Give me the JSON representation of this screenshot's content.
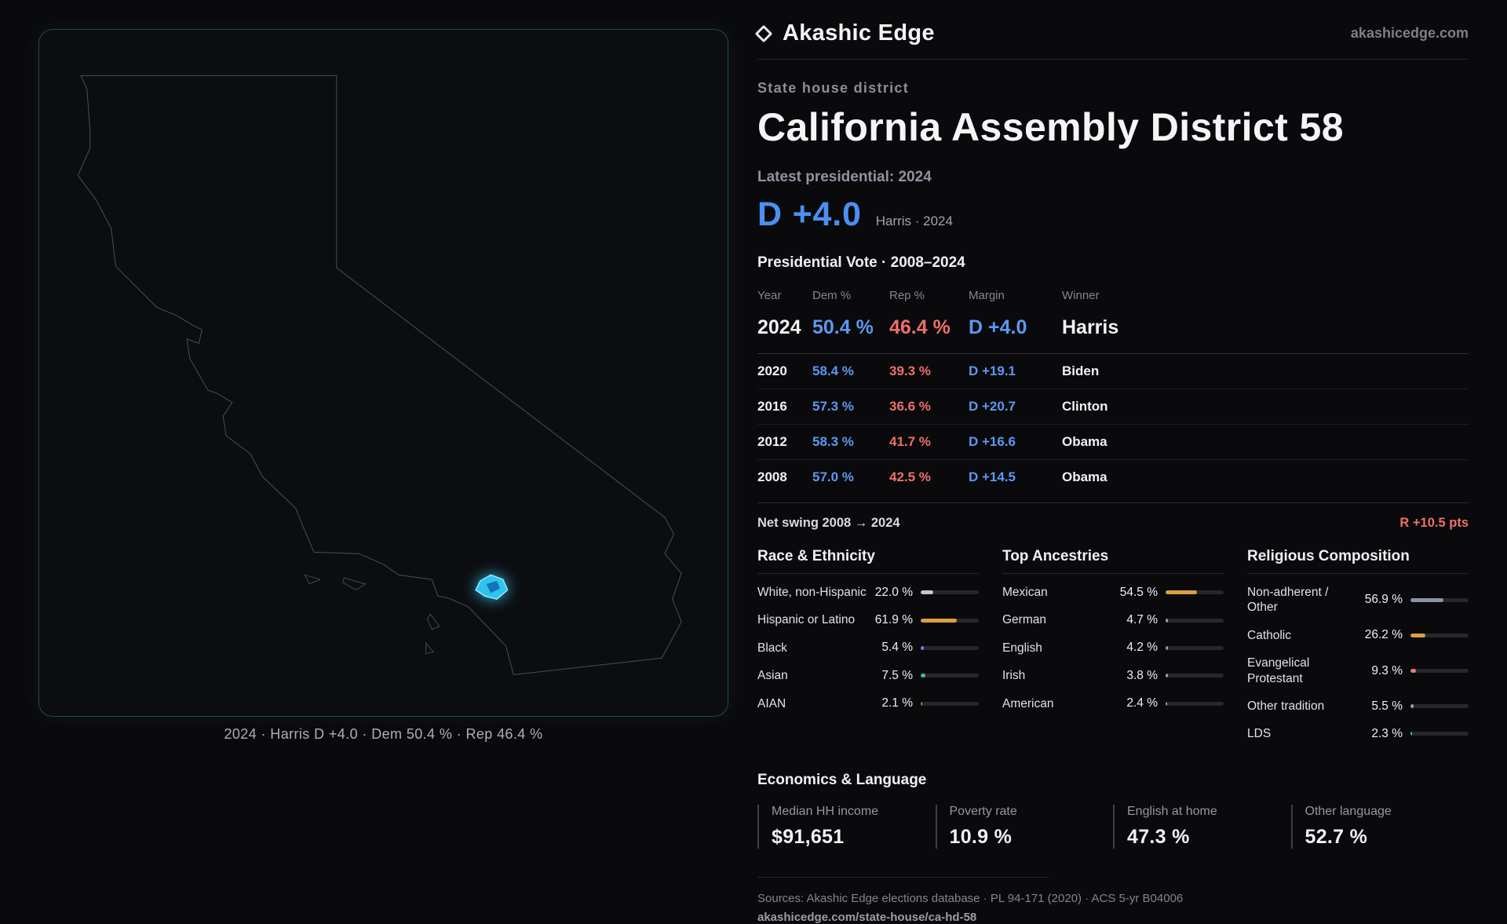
{
  "colors": {
    "dem_blue": "#5e97f4",
    "dem_blue_bright": "#4b90f2",
    "rep_red": "#ee6f6b",
    "accent_cyan": "#2ec4ee",
    "gold": "#d9a23f"
  },
  "header": {
    "brand": "Akashic Edge",
    "site": "akashicedge.com"
  },
  "map": {
    "caption": "2024 · Harris D +4.0 · Dem 50.4 % · Rep 46.4 %"
  },
  "district": {
    "kicker": "State house district",
    "title": "California Assembly District 58",
    "latest_label": "Latest presidential: 2024",
    "headline_margin": "D +4.0",
    "headline_context": "Harris · 2024"
  },
  "vote_table": {
    "title": "Presidential Vote · 2008–2024",
    "columns": {
      "year": "Year",
      "dem": "Dem %",
      "rep": "Rep %",
      "margin": "Margin",
      "winner": "Winner"
    },
    "rows": [
      {
        "year": "2024",
        "dem": "50.4 %",
        "rep": "46.4 %",
        "margin": "D +4.0",
        "winner": "Harris"
      },
      {
        "year": "2020",
        "dem": "58.4 %",
        "rep": "39.3 %",
        "margin": "D +19.1",
        "winner": "Biden"
      },
      {
        "year": "2016",
        "dem": "57.3 %",
        "rep": "36.6 %",
        "margin": "D +20.7",
        "winner": "Clinton"
      },
      {
        "year": "2012",
        "dem": "58.3 %",
        "rep": "41.7 %",
        "margin": "D +16.6",
        "winner": "Obama"
      },
      {
        "year": "2008",
        "dem": "57.0 %",
        "rep": "42.5 %",
        "margin": "D +14.5",
        "winner": "Obama"
      }
    ],
    "net_swing_label": "Net swing 2008 → 2024",
    "net_swing_value": "R +10.5 pts"
  },
  "demographics": {
    "race": {
      "title": "Race & Ethnicity",
      "rows": [
        {
          "label": "White, non-Hispanic",
          "value": "22.0 %",
          "pct": 22.0,
          "color": "#c3c9d1"
        },
        {
          "label": "Hispanic or Latino",
          "value": "61.9 %",
          "pct": 61.9,
          "color": "#d9a23f"
        },
        {
          "label": "Black",
          "value": "5.4 %",
          "pct": 5.4,
          "color": "#7b79e0"
        },
        {
          "label": "Asian",
          "value": "7.5 %",
          "pct": 7.5,
          "color": "#3cc1a6"
        },
        {
          "label": "AIAN",
          "value": "2.1 %",
          "pct": 2.1,
          "color": "#c9703f"
        }
      ]
    },
    "ancestries": {
      "title": "Top Ancestries",
      "rows": [
        {
          "label": "Mexican",
          "value": "54.5 %",
          "pct": 54.5,
          "color": "#d9a23f"
        },
        {
          "label": "German",
          "value": "4.7 %",
          "pct": 4.7,
          "color": "#9aa0a8"
        },
        {
          "label": "English",
          "value": "4.2 %",
          "pct": 4.2,
          "color": "#9aa0a8"
        },
        {
          "label": "Irish",
          "value": "3.8 %",
          "pct": 3.8,
          "color": "#9aa0a8"
        },
        {
          "label": "American",
          "value": "2.4 %",
          "pct": 2.4,
          "color": "#9aa0a8"
        }
      ]
    },
    "religion": {
      "title": "Religious Composition",
      "rows": [
        {
          "label": "Non-adherent / Other",
          "value": "56.9 %",
          "pct": 56.9,
          "color": "#8c93a8"
        },
        {
          "label": "Catholic",
          "value": "26.2 %",
          "pct": 26.2,
          "color": "#d9a23f"
        },
        {
          "label": "Evangelical Protestant",
          "value": "9.3 %",
          "pct": 9.3,
          "color": "#e87a74"
        },
        {
          "label": "Other tradition",
          "value": "5.5 %",
          "pct": 5.5,
          "color": "#9aa0a8"
        },
        {
          "label": "LDS",
          "value": "2.3 %",
          "pct": 2.3,
          "color": "#3cc1a6"
        }
      ]
    }
  },
  "economics": {
    "title": "Economics & Language",
    "stats": [
      {
        "label": "Median HH income",
        "value": "$91,651"
      },
      {
        "label": "Poverty rate",
        "value": "10.9 %"
      },
      {
        "label": "English at home",
        "value": "47.3 %"
      },
      {
        "label": "Other language",
        "value": "52.7 %"
      }
    ]
  },
  "footer": {
    "sources": "Sources: Akashic Edge elections database · PL 94-171 (2020) · ACS 5-yr B04006",
    "permalink": "akashicedge.com/state-house/ca-hd-58"
  }
}
